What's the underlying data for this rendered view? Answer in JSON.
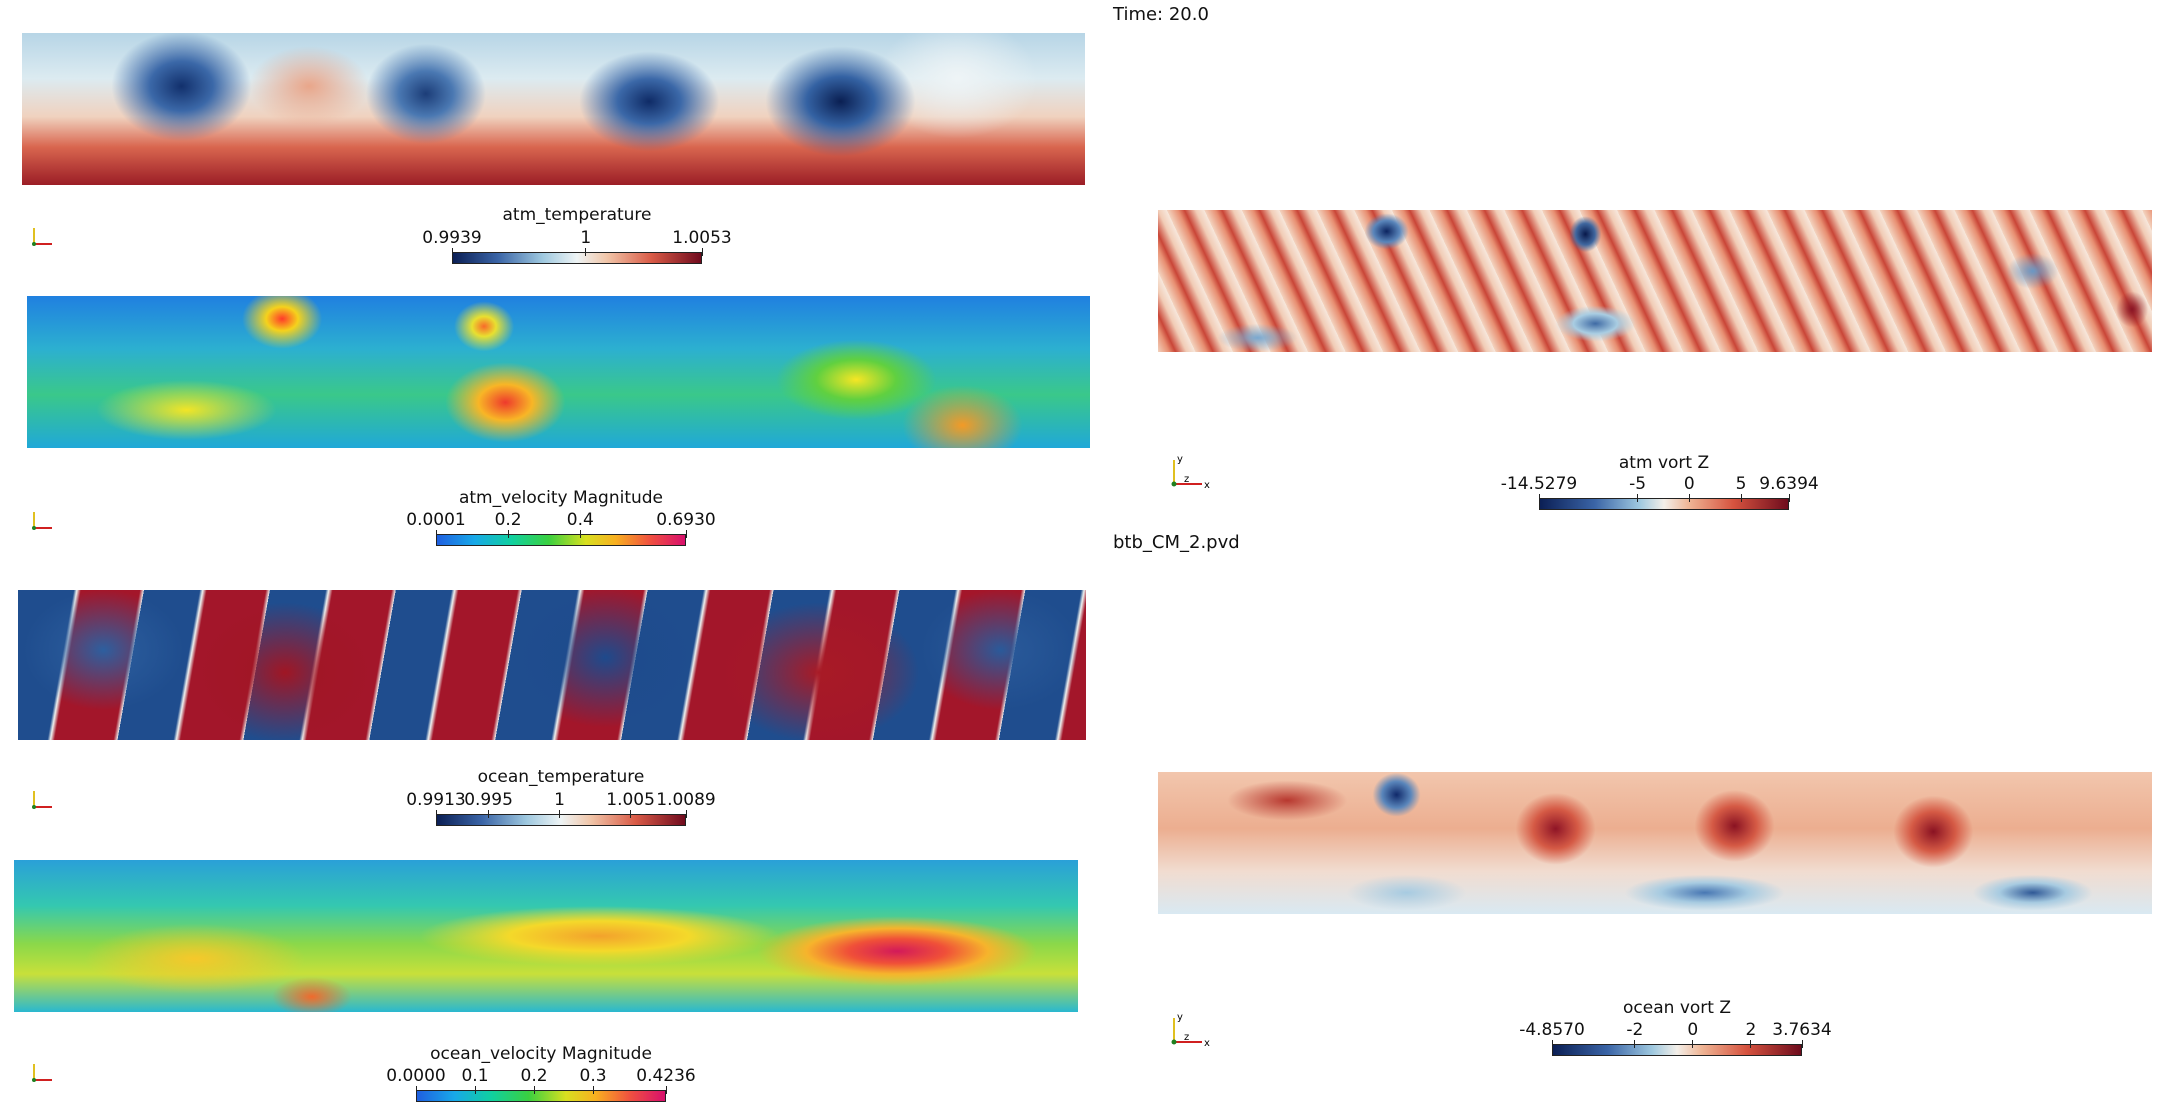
{
  "time_label": "Time: 20.0",
  "file_label": "btb_CM_2.pvd",
  "colors": {
    "axis_x": "#d02020",
    "axis_y": "#e0c020",
    "axis_z": "#208020"
  },
  "views": {
    "atm_temperature": {
      "title": "atm_temperature",
      "range": [
        0.9939,
        1.0053
      ],
      "ticks": [
        "0.9939",
        "1",
        "1.0053"
      ],
      "tick_values": [
        0.9939,
        1.0,
        1.0053
      ],
      "colormap": "cool-to-warm"
    },
    "atm_velocity": {
      "title": "atm_velocity Magnitude",
      "range": [
        0.0001,
        0.693
      ],
      "ticks": [
        "0.0001",
        "0.2",
        "0.4",
        "0.6930"
      ],
      "tick_values": [
        0.0001,
        0.2,
        0.4,
        0.693
      ],
      "colormap": "rainbow"
    },
    "ocean_temperature": {
      "title": "ocean_temperature",
      "range": [
        0.9913,
        1.0089
      ],
      "ticks": [
        "0.9913",
        "0.995",
        "1",
        "1.005",
        "1.0089"
      ],
      "tick_values": [
        0.9913,
        0.995,
        1.0,
        1.005,
        1.0089
      ],
      "colormap": "cool-to-warm"
    },
    "ocean_velocity": {
      "title": "ocean_velocity Magnitude",
      "range": [
        0.0,
        0.4236
      ],
      "ticks": [
        "0.0000",
        "0.1",
        "0.2",
        "0.3",
        "0.4236"
      ],
      "tick_values": [
        0.0,
        0.1,
        0.2,
        0.3,
        0.4236
      ],
      "colormap": "rainbow"
    },
    "atm_vort": {
      "title": "atm vort Z",
      "range": [
        -14.5279,
        9.6394
      ],
      "ticks": [
        "-14.5279",
        "-5",
        "0",
        "5",
        "9.6394"
      ],
      "tick_values": [
        -14.5279,
        -5,
        0,
        5,
        9.6394
      ],
      "colormap": "cool-to-warm",
      "axes_labels": {
        "x": "x",
        "y": "y",
        "z": "z"
      }
    },
    "ocean_vort": {
      "title": "ocean vort Z",
      "range": [
        -4.857,
        3.7634
      ],
      "ticks": [
        "-4.8570",
        "-2",
        "0",
        "2",
        "3.7634"
      ],
      "tick_values": [
        -4.857,
        -2,
        0,
        2,
        3.7634
      ],
      "colormap": "cool-to-warm",
      "axes_labels": {
        "x": "x",
        "y": "y",
        "z": "z"
      }
    }
  }
}
